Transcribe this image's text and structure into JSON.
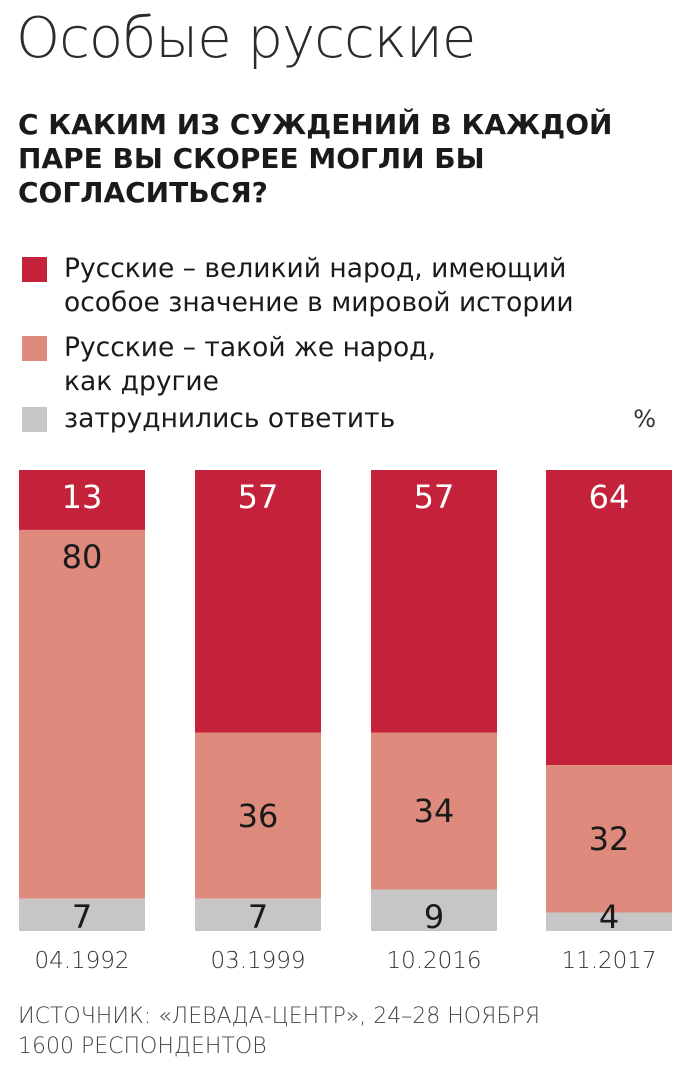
{
  "title": "Особые русские",
  "question": "С каким из суждений в каждой паре вы скорее могли бы согласиться?",
  "unit": "%",
  "source_line1": "ИСТОЧНИК: «ЛЕВАДА-ЦЕНТР», 24–28 НОЯБРЯ",
  "source_line2": "1600 РЕСПОНДЕНТОВ",
  "colors": {
    "great": "#c4213a",
    "same": "#de8a7d",
    "unsure": "#c6c6c6"
  },
  "legend": [
    {
      "label_line1": "Русские – великий народ, имеющий",
      "label_line2": "особое значение в мировой истории",
      "color": "#c4213a"
    },
    {
      "label_line1": "Русские – такой же народ,",
      "label_line2": "как другие",
      "color": "#de8a7d"
    },
    {
      "label_line1": "затруднились ответить",
      "label_line2": "",
      "color": "#c6c6c6"
    }
  ],
  "chart_data": {
    "type": "bar",
    "stacked": true,
    "categories": [
      "04.1992",
      "03.1999",
      "10.2016",
      "11.2017"
    ],
    "ylim": [
      0,
      100
    ],
    "series": [
      {
        "name": "Русские – великий народ, имеющий особое значение в мировой истории",
        "values": [
          13,
          57,
          57,
          64
        ],
        "color": "#c4213a"
      },
      {
        "name": "Русские – такой же народ, как другие",
        "values": [
          80,
          36,
          34,
          32
        ],
        "color": "#de8a7d"
      },
      {
        "name": "затруднились ответить",
        "values": [
          7,
          7,
          9,
          4
        ],
        "color": "#c6c6c6"
      }
    ]
  }
}
